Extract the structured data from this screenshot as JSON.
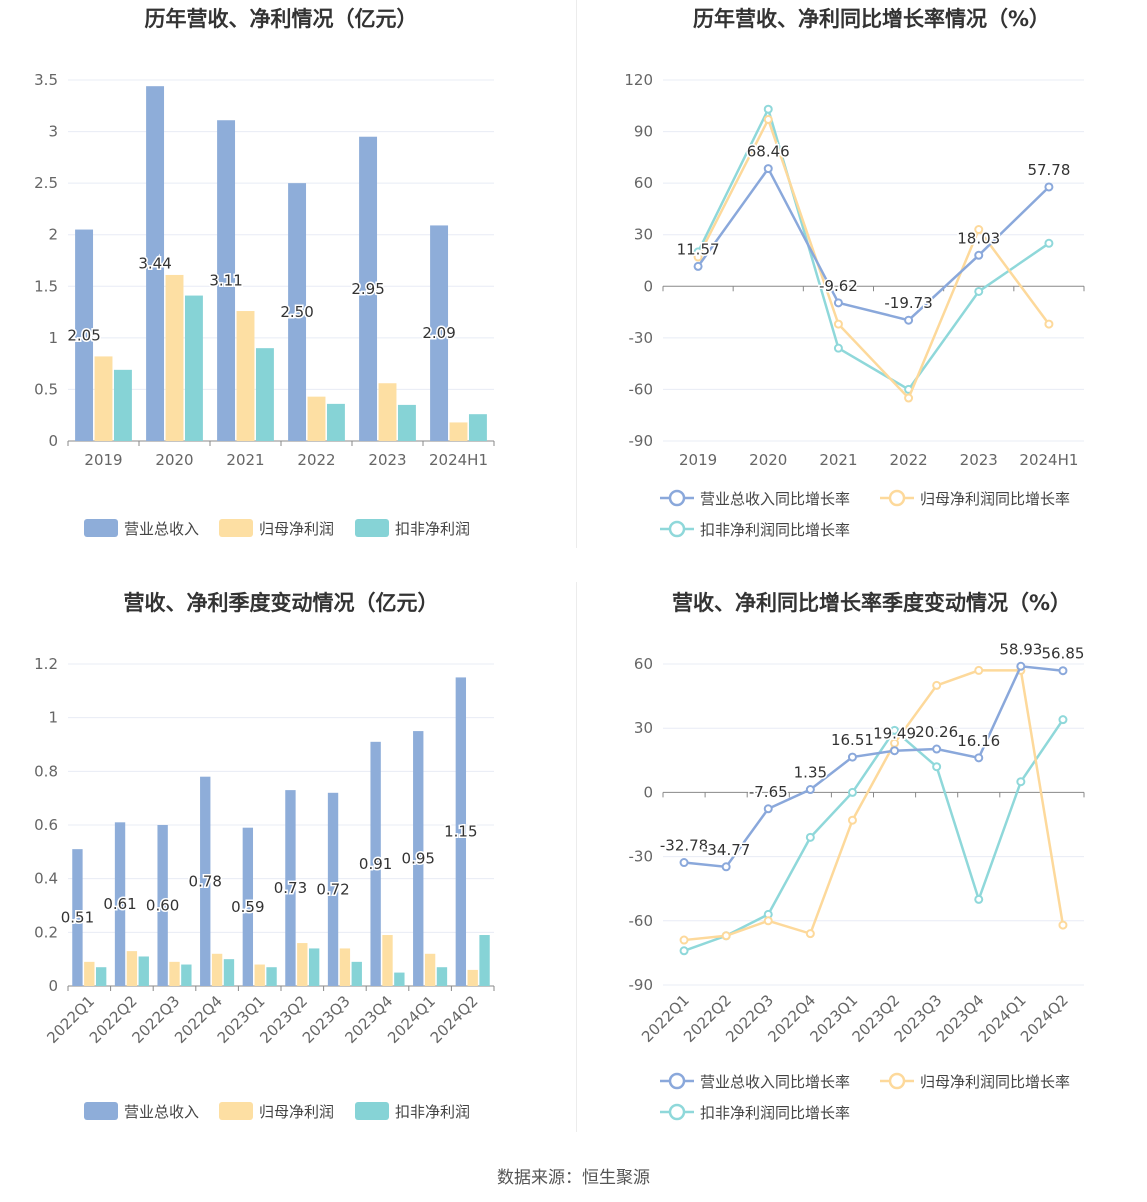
{
  "footer": {
    "source": "数据来源：恒生聚源"
  },
  "colors": {
    "revenue": "#8eadd9",
    "net_profit": "#fddfa3",
    "deducted_profit": "#86d3d6",
    "axis": "#888888",
    "grid": "#e8ecf5"
  },
  "chart_data": [
    {
      "id": "annual_bar",
      "type": "bar",
      "title": "历年营收、净利情况（亿元）",
      "categories": [
        "2019",
        "2020",
        "2021",
        "2022",
        "2023",
        "2024H1"
      ],
      "ylim": [
        0,
        3.5
      ],
      "yticks": [
        "0",
        "0.5",
        "1",
        "1.5",
        "2",
        "2.5",
        "3",
        "3.5"
      ],
      "series": [
        {
          "name": "营业总收入",
          "values": [
            2.05,
            3.44,
            3.11,
            2.5,
            2.95,
            2.09
          ],
          "labels": [
            "2.05",
            "3.44",
            "3.11",
            "2.50",
            "2.95",
            "2.09"
          ]
        },
        {
          "name": "归母净利润",
          "values": [
            0.82,
            1.61,
            1.26,
            0.43,
            0.56,
            0.18
          ]
        },
        {
          "name": "扣非净利润",
          "values": [
            0.69,
            1.41,
            0.9,
            0.36,
            0.35,
            0.26
          ]
        }
      ],
      "legend": "bottom"
    },
    {
      "id": "annual_line",
      "type": "line",
      "title": "历年营收、净利同比增长率情况（%）",
      "categories": [
        "2019",
        "2020",
        "2021",
        "2022",
        "2023",
        "2024H1"
      ],
      "ylim": [
        -90,
        120
      ],
      "yticks": [
        "-90",
        "-60",
        "-30",
        "0",
        "30",
        "60",
        "90",
        "120"
      ],
      "series": [
        {
          "name": "营业总收入同比增长率",
          "values": [
            11.57,
            68.46,
            -9.62,
            -19.73,
            18.03,
            57.78
          ],
          "labels": [
            "11.57",
            "68.46",
            "-9.62",
            "-19.73",
            "18.03",
            "57.78"
          ]
        },
        {
          "name": "归母净利润同比增长率",
          "values": [
            17,
            97,
            -22,
            -65,
            33,
            -22
          ]
        },
        {
          "name": "扣非净利润同比增长率",
          "values": [
            20,
            103,
            -36,
            -60,
            -3,
            25
          ]
        }
      ],
      "legend": "bottom"
    },
    {
      "id": "quarter_bar",
      "type": "bar",
      "title": "营收、净利季度变动情况（亿元）",
      "categories": [
        "2022Q1",
        "2022Q2",
        "2022Q3",
        "2022Q4",
        "2023Q1",
        "2023Q2",
        "2023Q3",
        "2023Q4",
        "2024Q1",
        "2024Q2"
      ],
      "ylim": [
        0,
        1.2
      ],
      "yticks": [
        "0",
        "0.2",
        "0.4",
        "0.6",
        "0.8",
        "1",
        "1.2"
      ],
      "series": [
        {
          "name": "营业总收入",
          "values": [
            0.51,
            0.61,
            0.6,
            0.78,
            0.59,
            0.73,
            0.72,
            0.91,
            0.95,
            1.15
          ],
          "labels": [
            "0.51",
            "0.61",
            "0.60",
            "0.78",
            "0.59",
            "0.73",
            "0.72",
            "0.91",
            "0.95",
            "1.15"
          ]
        },
        {
          "name": "归母净利润",
          "values": [
            0.09,
            0.13,
            0.09,
            0.12,
            0.08,
            0.16,
            0.14,
            0.19,
            0.12,
            0.06
          ]
        },
        {
          "name": "扣非净利润",
          "values": [
            0.07,
            0.11,
            0.08,
            0.1,
            0.07,
            0.14,
            0.09,
            0.05,
            0.07,
            0.19
          ]
        }
      ],
      "legend": "bottom"
    },
    {
      "id": "quarter_line",
      "type": "line",
      "title": "营收、净利同比增长率季度变动情况（%）",
      "categories": [
        "2022Q1",
        "2022Q2",
        "2022Q3",
        "2022Q4",
        "2023Q1",
        "2023Q2",
        "2023Q3",
        "2023Q4",
        "2024Q1",
        "2024Q2"
      ],
      "ylim": [
        -90,
        60
      ],
      "yticks": [
        "-90",
        "-60",
        "-30",
        "0",
        "30",
        "60"
      ],
      "series": [
        {
          "name": "营业总收入同比增长率",
          "values": [
            -32.78,
            -34.77,
            -7.65,
            1.35,
            16.51,
            19.49,
            20.26,
            16.16,
            58.93,
            56.85
          ],
          "labels": [
            "-32.78",
            "-34.77",
            "-7.65",
            "1.35",
            "16.51",
            "19.49",
            "20.26",
            "16.16",
            "58.93",
            "56.85"
          ]
        },
        {
          "name": "归母净利润同比增长率",
          "values": [
            -69,
            -67,
            -60,
            -66,
            -13,
            23,
            50,
            57,
            57,
            -62
          ]
        },
        {
          "name": "扣非净利润同比增长率",
          "values": [
            -74,
            -67,
            -57,
            -21,
            0,
            29,
            12,
            -50,
            5,
            34
          ]
        }
      ],
      "legend": "bottom"
    }
  ]
}
